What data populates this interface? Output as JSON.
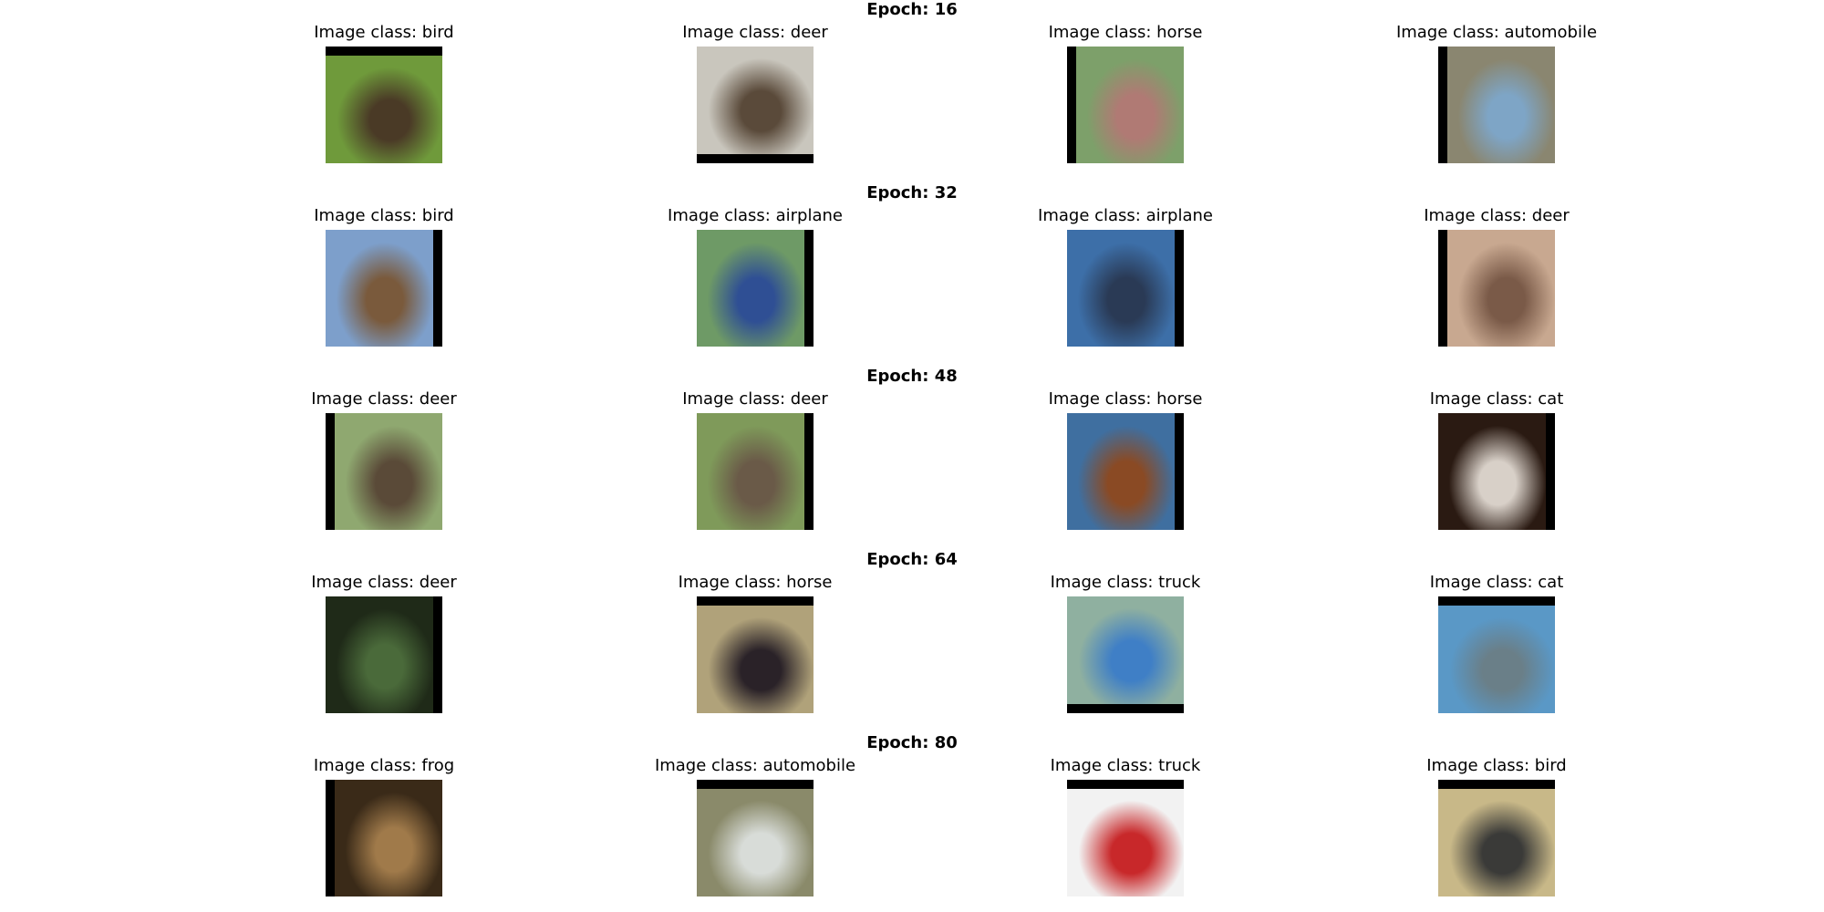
{
  "grid": {
    "rows": [
      {
        "epoch_label": "Epoch: 16",
        "cells": [
          {
            "title": "Image class: bird",
            "bg": "#6f9a3b",
            "blob": "#4a3a26",
            "pad": "top"
          },
          {
            "title": "Image class: deer",
            "bg": "#c9c6bd",
            "blob": "#5a4a3a",
            "pad": "bottom"
          },
          {
            "title": "Image class: horse",
            "bg": "#7da06a",
            "blob": "#b07a74",
            "pad": "left"
          },
          {
            "title": "Image class: automobile",
            "bg": "#8a8670",
            "blob": "#7ea5c6",
            "pad": "left"
          }
        ]
      },
      {
        "epoch_label": "Epoch: 32",
        "cells": [
          {
            "title": "Image class: bird",
            "bg": "#7d9fcb",
            "blob": "#7a5a3c",
            "pad": "right"
          },
          {
            "title": "Image class: airplane",
            "bg": "#6e9a66",
            "blob": "#2f4f94",
            "pad": "right"
          },
          {
            "title": "Image class: airplane",
            "bg": "#3d6fa8",
            "blob": "#2a3a55",
            "pad": "right"
          },
          {
            "title": "Image class: deer",
            "bg": "#c8a890",
            "blob": "#7a5a48",
            "pad": "left"
          }
        ]
      },
      {
        "epoch_label": "Epoch: 48",
        "cells": [
          {
            "title": "Image class: deer",
            "bg": "#8fa870",
            "blob": "#5a4a38",
            "pad": "left"
          },
          {
            "title": "Image class: deer",
            "bg": "#7f9a5a",
            "blob": "#6a5a48",
            "pad": "right"
          },
          {
            "title": "Image class: horse",
            "bg": "#3f6fa0",
            "blob": "#8a4a24",
            "pad": "right"
          },
          {
            "title": "Image class: cat",
            "bg": "#2a1a12",
            "blob": "#d8d0c8",
            "pad": "right"
          }
        ]
      },
      {
        "epoch_label": "Epoch: 64",
        "cells": [
          {
            "title": "Image class: deer",
            "bg": "#1f2a18",
            "blob": "#4a6a3a",
            "pad": "right"
          },
          {
            "title": "Image class: horse",
            "bg": "#b0a27a",
            "blob": "#2a2228",
            "pad": "top"
          },
          {
            "title": "Image class: truck",
            "bg": "#8fb0a0",
            "blob": "#3f7fc6",
            "pad": "bottom"
          },
          {
            "title": "Image class: cat",
            "bg": "#5a98c6",
            "blob": "#6a7f88",
            "pad": "top"
          }
        ]
      },
      {
        "epoch_label": "Epoch: 80",
        "cells": [
          {
            "title": "Image class: frog",
            "bg": "#3a2a18",
            "blob": "#a07a4a",
            "pad": "left"
          },
          {
            "title": "Image class: automobile",
            "bg": "#8a8a6a",
            "blob": "#d8dcd8",
            "pad": "top"
          },
          {
            "title": "Image class: truck",
            "bg": "#f2f2f2",
            "blob": "#c8282a",
            "pad": "top"
          },
          {
            "title": "Image class: bird",
            "bg": "#c8b888",
            "blob": "#3a3a38",
            "pad": "top"
          }
        ]
      }
    ]
  }
}
